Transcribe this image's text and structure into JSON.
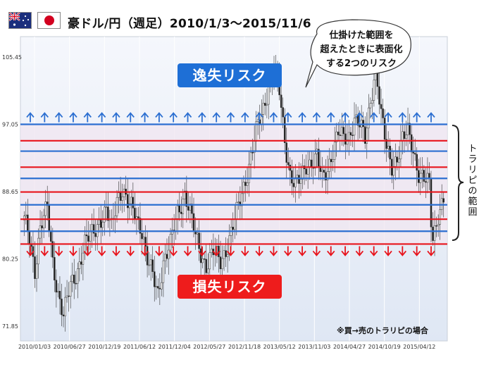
{
  "header": {
    "title": "豪ドル/円（週足）2010/1/3～2015/11/6",
    "flags": [
      "australia-flag",
      "japan-flag"
    ]
  },
  "annotations": {
    "upper_badge": "逸失リスク",
    "lower_badge": "損失リスク",
    "bubble_lines": [
      "仕掛けた範囲を",
      "超えたときに表面化",
      "する2つのリスク"
    ],
    "note": "※買→売のトラリピの場合",
    "range_label": "トラリピの範囲"
  },
  "colors": {
    "upper_badge": "#1e6fd6",
    "lower_badge": "#ee1c1c",
    "red_line": "#e8141c",
    "blue_line": "#2c6fd1",
    "up_arrow": "#2c6fd1",
    "down_arrow": "#e8141c",
    "plot_bg": "#e9eef8",
    "band_fill": "#f0e6f0"
  },
  "chart_data": {
    "type": "candlestick",
    "ylim": [
      70.0,
      108.0
    ],
    "y_ticks": [
      105.45,
      97.05,
      88.65,
      80.25,
      71.85
    ],
    "y_tick_labels": [
      "105.45",
      "97.05",
      "88.65",
      "80.25",
      "71.85"
    ],
    "x_ticks": [
      "2010/01/03",
      "2010/06/27",
      "2010/12/19",
      "2011/06/12",
      "2011/12/04",
      "2012/05/27",
      "2012/11/18",
      "2013/05/12",
      "2013/11/03",
      "2014/04/27",
      "2014/10/19",
      "2015/04/12"
    ],
    "range_top": 97.05,
    "range_bottom": 82.1,
    "red_levels": [
      95.0,
      91.7,
      88.6,
      85.2,
      82.1
    ],
    "blue_levels": [
      97.05,
      93.7,
      90.3,
      87.0,
      83.7
    ],
    "price_path": [
      [
        0,
        85.0
      ],
      [
        3,
        83.0
      ],
      [
        6,
        79.0
      ],
      [
        9,
        84.0
      ],
      [
        13,
        86.5
      ],
      [
        16,
        80.0
      ],
      [
        19,
        76.0
      ],
      [
        22,
        73.0
      ],
      [
        26,
        77.0
      ],
      [
        30,
        79.0
      ],
      [
        34,
        82.0
      ],
      [
        38,
        83.5
      ],
      [
        42,
        85.0
      ],
      [
        46,
        86.0
      ],
      [
        49,
        84.0
      ],
      [
        52,
        88.0
      ],
      [
        55,
        89.0
      ],
      [
        58,
        87.0
      ],
      [
        62,
        86.0
      ],
      [
        66,
        84.0
      ],
      [
        69,
        80.0
      ],
      [
        72,
        78.0
      ],
      [
        75,
        76.0
      ],
      [
        78,
        80.0
      ],
      [
        82,
        82.0
      ],
      [
        86,
        86.0
      ],
      [
        90,
        88.5
      ],
      [
        93,
        86.0
      ],
      [
        96,
        83.0
      ],
      [
        99,
        81.0
      ],
      [
        102,
        79.5
      ],
      [
        106,
        81.0
      ],
      [
        110,
        80.0
      ],
      [
        114,
        82.0
      ],
      [
        118,
        85.0
      ],
      [
        122,
        88.5
      ],
      [
        126,
        92.0
      ],
      [
        130,
        96.0
      ],
      [
        134,
        99.0
      ],
      [
        137,
        102.0
      ],
      [
        140,
        104.0
      ],
      [
        143,
        101.0
      ],
      [
        146,
        95.0
      ],
      [
        149,
        91.0
      ],
      [
        152,
        89.5
      ],
      [
        155,
        90.0
      ],
      [
        158,
        92.0
      ],
      [
        161,
        92.5
      ],
      [
        164,
        93.0
      ],
      [
        167,
        90.0
      ],
      [
        170,
        91.5
      ],
      [
        173,
        94.0
      ],
      [
        176,
        96.0
      ],
      [
        179,
        95.0
      ],
      [
        182,
        95.5
      ],
      [
        185,
        98.0
      ],
      [
        188,
        97.0
      ],
      [
        191,
        95.0
      ],
      [
        194,
        100.0
      ],
      [
        197,
        104.5
      ],
      [
        200,
        98.0
      ],
      [
        203,
        94.0
      ],
      [
        206,
        92.0
      ],
      [
        209,
        93.0
      ],
      [
        212,
        95.0
      ],
      [
        215,
        96.0
      ],
      [
        218,
        94.0
      ],
      [
        221,
        91.0
      ],
      [
        224,
        90.0
      ],
      [
        227,
        89.5
      ],
      [
        228,
        85.0
      ],
      [
        229,
        83.0
      ],
      [
        232,
        86.0
      ],
      [
        235,
        87.5
      ]
    ]
  }
}
